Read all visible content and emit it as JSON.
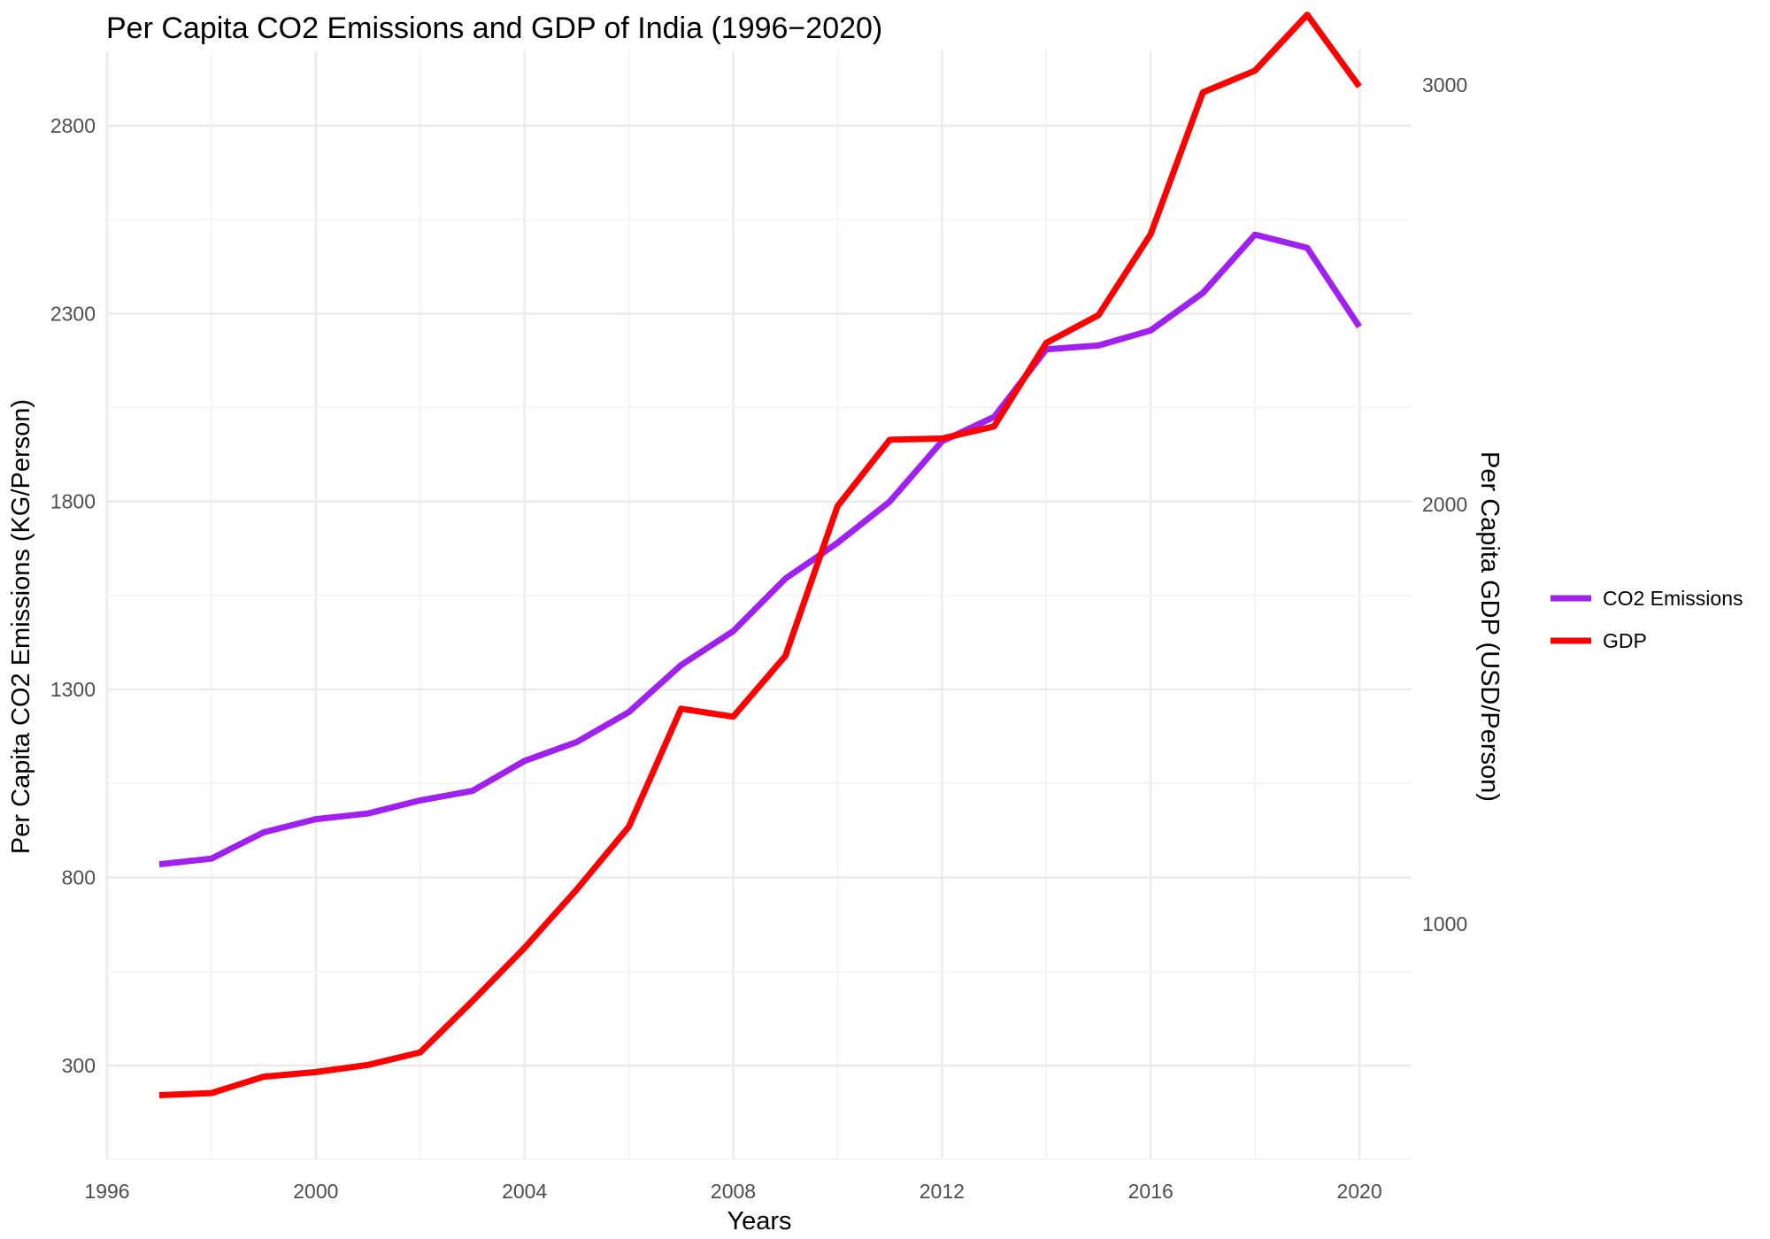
{
  "chart_data": {
    "type": "line",
    "title": "Per Capita CO2 Emissions and GDP of India (1996−2020)",
    "xlabel": "Years",
    "ylabel": "Per Capita CO2 Emissions (KG/Person)",
    "y2label": "Per Capita GDP (USD/Person)",
    "xlim": [
      1996,
      2021
    ],
    "ylim": [
      50,
      3000
    ],
    "y2lim": [
      439,
      3082
    ],
    "x_ticks": [
      "1996",
      "2000",
      "2004",
      "2008",
      "2012",
      "2016",
      "2020"
    ],
    "y_ticks": [
      "300",
      "800",
      "1300",
      "1800",
      "2300",
      "2800"
    ],
    "y2_ticks": [
      "1000",
      "2000",
      "3000"
    ],
    "grid": true,
    "legend_position": "right",
    "x": [
      1997,
      1998,
      1999,
      2000,
      2001,
      2002,
      2003,
      2004,
      2005,
      2006,
      2007,
      2008,
      2009,
      2010,
      2011,
      2012,
      2013,
      2014,
      2015,
      2016,
      2017,
      2018,
      2019,
      2020
    ],
    "series": [
      {
        "name": "CO2 Emissions",
        "axis": "left",
        "color": "#a020f0",
        "values": [
          835,
          850,
          920,
          955,
          970,
          1005,
          1030,
          1110,
          1160,
          1240,
          1365,
          1455,
          1595,
          1690,
          1800,
          1960,
          2025,
          2205,
          2215,
          2255,
          2355,
          2510,
          2475,
          2265
        ]
      },
      {
        "name": "GDP",
        "axis": "right",
        "color": "#ff0000",
        "values": [
          592,
          597,
          636,
          647,
          664,
          694,
          816,
          943,
          1082,
          1232,
          1513,
          1494,
          1639,
          1996,
          2154,
          2157,
          2186,
          2385,
          2451,
          2644,
          2982,
          3034,
          3167,
          2996
        ]
      }
    ]
  }
}
